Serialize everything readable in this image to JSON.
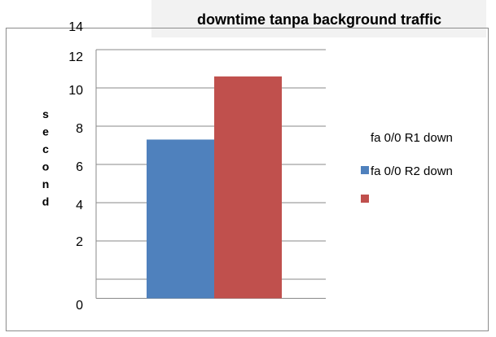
{
  "chart_data": {
    "type": "bar",
    "title": "downtime tanpa background traffic",
    "xlabel": "",
    "ylabel": "second",
    "categories": [
      ""
    ],
    "series": [
      {
        "name": "fa 0/0 R2 down",
        "values": [
          7.3
        ],
        "color": "#4f81bd"
      },
      {
        "name": "",
        "values": [
          10.6
        ],
        "color": "#c0504d"
      }
    ],
    "ylim": [
      -1,
      12
    ],
    "ytick_labels": [
      {
        "value": 14,
        "label": "14"
      },
      {
        "value": 12,
        "label": "12"
      },
      {
        "value": 10,
        "label": "10"
      },
      {
        "value": 8,
        "label": "8"
      },
      {
        "value": 6,
        "label": "6"
      },
      {
        "value": 4,
        "label": "4"
      },
      {
        "value": 2,
        "label": "2"
      },
      {
        "value": 0,
        "label": "0"
      }
    ],
    "gridlines": [
      12,
      10,
      8,
      6,
      4,
      2,
      0,
      -1
    ],
    "legend_heading": "fa 0/0 R1 down",
    "legend_position": "right",
    "grid": true
  }
}
